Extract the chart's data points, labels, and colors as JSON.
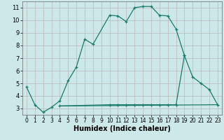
{
  "xlabel": "Humidex (Indice chaleur)",
  "xlim": [
    -0.5,
    23.5
  ],
  "ylim": [
    2.5,
    11.5
  ],
  "xticks": [
    0,
    1,
    2,
    3,
    4,
    5,
    6,
    7,
    8,
    9,
    10,
    11,
    12,
    13,
    14,
    15,
    16,
    17,
    18,
    19,
    20,
    21,
    22,
    23
  ],
  "yticks": [
    3,
    4,
    5,
    6,
    7,
    8,
    9,
    10,
    11
  ],
  "background_color": "#cce8e8",
  "grid_color": "#b8b8b8",
  "line_color": "#1a7a6a",
  "line1_x": [
    0,
    1,
    2,
    3,
    4,
    5,
    6,
    7,
    8,
    10,
    11,
    12,
    13,
    14,
    15,
    16,
    17,
    18,
    19
  ],
  "line1_y": [
    4.7,
    3.3,
    2.7,
    3.1,
    3.6,
    5.2,
    6.3,
    8.5,
    8.1,
    10.4,
    10.35,
    9.9,
    11.0,
    11.1,
    11.1,
    10.4,
    10.35,
    9.3,
    7.2
  ],
  "line2_x": [
    4,
    10,
    11,
    12,
    13,
    14,
    15,
    16,
    17,
    18,
    19,
    20,
    21,
    22,
    23
  ],
  "line2_y": [
    3.2,
    3.3,
    3.3,
    3.3,
    3.3,
    3.3,
    3.3,
    3.3,
    3.3,
    3.3,
    7.2,
    5.5,
    5.0,
    4.5,
    3.3
  ],
  "line3_x": [
    4,
    23
  ],
  "line3_y": [
    3.2,
    3.3
  ]
}
